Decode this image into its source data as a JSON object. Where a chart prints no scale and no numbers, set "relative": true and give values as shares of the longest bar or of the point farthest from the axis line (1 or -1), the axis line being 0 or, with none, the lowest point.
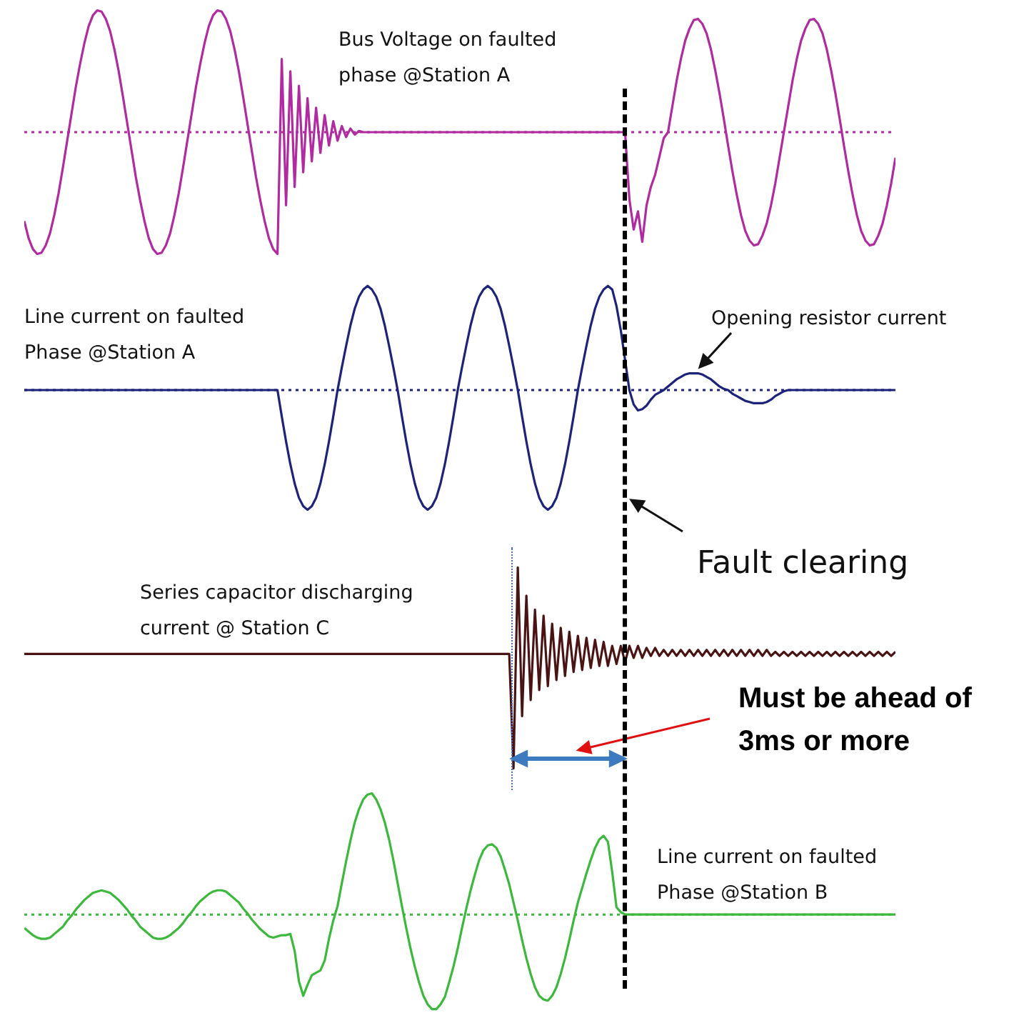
{
  "chart_data": [
    {
      "type": "line",
      "relative": true,
      "tick_labels": false,
      "marker": "none",
      "line_style": "solid",
      "categories": [
        null,
        null,
        null,
        null,
        null,
        null,
        null,
        null,
        null,
        null,
        null,
        null,
        null,
        null,
        null,
        null,
        null,
        null,
        null,
        null,
        null,
        null,
        null,
        null,
        null,
        null,
        null,
        null,
        null,
        null,
        null,
        null,
        null,
        null,
        null,
        null,
        null,
        null,
        null,
        null,
        null,
        null,
        null,
        null,
        null,
        null,
        null,
        null,
        null,
        null,
        null,
        null,
        null,
        null,
        null,
        null,
        null,
        null,
        null,
        null,
        null,
        null,
        null,
        null,
        null,
        null,
        null,
        null,
        null,
        null,
        null,
        null,
        null,
        null,
        null,
        null,
        null,
        null,
        null,
        null,
        null,
        null,
        null,
        null,
        null,
        null,
        null,
        null,
        null,
        null,
        null,
        null,
        null,
        null,
        null,
        null,
        null,
        null,
        null,
        null,
        null,
        null,
        null,
        null,
        null,
        null,
        null,
        null,
        null,
        null,
        null,
        null,
        null,
        null,
        null,
        null,
        null,
        null,
        null,
        null,
        null,
        null,
        null,
        null,
        null,
        null,
        null,
        null,
        null,
        null,
        null,
        null,
        null,
        null,
        null,
        null,
        null,
        null,
        null,
        null,
        null,
        null,
        null,
        null,
        null,
        null,
        null,
        null,
        null,
        null,
        null,
        null,
        null,
        null,
        null,
        null,
        null,
        null,
        null,
        null,
        null,
        null,
        null,
        null,
        null,
        null,
        null,
        null,
        null,
        null,
        null,
        null,
        null,
        null,
        null,
        null,
        null,
        null,
        null,
        null,
        null,
        null,
        null,
        null,
        null,
        null,
        null,
        null,
        null,
        null,
        null,
        null,
        null,
        null,
        null,
        null,
        null,
        null,
        null,
        null,
        null,
        null,
        null,
        null
      ],
      "series": [
        {
          "name": "Bus Voltage on faulted phase @Station A",
          "color": "#b02aa0",
          "values": [
            -0.73,
            -0.87,
            -0.96,
            -1,
            -0.99,
            -0.93,
            -0.83,
            -0.68,
            -0.5,
            -0.29,
            -0.07,
            0.15,
            0.37,
            0.56,
            0.73,
            0.87,
            0.96,
            1,
            0.99,
            0.93,
            0.83,
            0.68,
            0.5,
            0.29,
            0.07,
            -0.15,
            -0.37,
            -0.56,
            -0.73,
            -0.87,
            -0.96,
            -1,
            -0.99,
            -0.93,
            -0.83,
            -0.68,
            -0.5,
            -0.29,
            -0.07,
            0.15,
            0.37,
            0.56,
            0.73,
            0.87,
            0.96,
            1,
            0.99,
            0.93,
            0.83,
            0.68,
            0.5,
            0.29,
            0.07,
            -0.15,
            -0.37,
            -0.56,
            -0.73,
            -0.87,
            -0.96,
            -1,
            0.6,
            -0.6,
            0.5,
            -0.45,
            0.38,
            -0.33,
            0.28,
            -0.24,
            0.2,
            -0.17,
            0.14,
            -0.11,
            0.09,
            -0.07,
            0.05,
            -0.04,
            0.03,
            -0.02,
            0.01,
            0,
            0,
            0,
            0,
            0,
            0,
            0,
            0,
            0,
            0,
            0,
            0,
            0,
            0,
            0,
            0,
            0,
            0,
            0,
            0,
            0,
            0,
            0,
            0,
            0,
            0,
            0,
            0,
            0,
            0,
            0,
            0,
            0,
            0,
            0,
            0,
            0,
            0,
            0,
            0,
            0,
            0,
            0,
            0,
            0,
            0,
            0,
            0,
            0,
            0,
            0,
            0,
            0,
            0,
            0,
            0,
            0,
            0,
            0,
            0,
            0,
            0,
            -0.55,
            -0.8,
            -0.65,
            -0.9,
            -0.6,
            -0.45,
            -0.35,
            -0.2,
            -0.05,
            0,
            0.21,
            0.42,
            0.6,
            0.75,
            0.85,
            0.92,
            0.93,
            0.89,
            0.81,
            0.68,
            0.51,
            0.32,
            0.11,
            -0.11,
            -0.32,
            -0.51,
            -0.68,
            -0.81,
            -0.89,
            -0.93,
            -0.92,
            -0.85,
            -0.75,
            -0.6,
            -0.42,
            -0.21,
            0,
            0.21,
            0.42,
            0.6,
            0.75,
            0.85,
            0.92,
            0.93,
            0.89,
            0.81,
            0.68,
            0.51,
            0.32,
            0.11,
            -0.11,
            -0.32,
            -0.51,
            -0.68,
            -0.81,
            -0.89,
            -0.93,
            -0.92,
            -0.85,
            -0.75,
            -0.6,
            -0.42,
            -0.21
          ]
        }
      ],
      "ref_lines": [
        {
          "axis": "y",
          "value": 0,
          "color": "#b02aa0",
          "line_style": "dotted"
        }
      ]
    },
    {
      "type": "line",
      "relative": true,
      "tick_labels": false,
      "marker": "none",
      "line_style": "solid",
      "categories": [
        null,
        null,
        null,
        null,
        null,
        null,
        null,
        null,
        null,
        null,
        null,
        null,
        null,
        null,
        null,
        null,
        null,
        null,
        null,
        null,
        null,
        null,
        null,
        null,
        null,
        null,
        null,
        null,
        null,
        null,
        null,
        null,
        null,
        null,
        null,
        null,
        null,
        null,
        null,
        null,
        null,
        null,
        null,
        null,
        null,
        null,
        null,
        null,
        null,
        null,
        null,
        null,
        null,
        null,
        null,
        null,
        null,
        null,
        null,
        null,
        null,
        null,
        null,
        null,
        null,
        null,
        null,
        null,
        null,
        null,
        null,
        null,
        null,
        null,
        null,
        null,
        null,
        null,
        null,
        null,
        null,
        null,
        null,
        null,
        null,
        null,
        null,
        null,
        null,
        null,
        null,
        null,
        null,
        null,
        null,
        null,
        null,
        null,
        null,
        null,
        null,
        null,
        null,
        null,
        null,
        null,
        null,
        null,
        null,
        null,
        null,
        null,
        null,
        null,
        null,
        null,
        null,
        null,
        null,
        null,
        null,
        null,
        null,
        null,
        null,
        null,
        null,
        null,
        null,
        null,
        null,
        null,
        null,
        null,
        null,
        null,
        null,
        null,
        null,
        null,
        null,
        null,
        null,
        null,
        null,
        null,
        null,
        null,
        null,
        null,
        null,
        null,
        null,
        null,
        null,
        null,
        null,
        null,
        null,
        null,
        null,
        null,
        null,
        null,
        null,
        null,
        null,
        null,
        null,
        null,
        null,
        null,
        null,
        null,
        null,
        null,
        null,
        null,
        null,
        null,
        null,
        null,
        null,
        null,
        null,
        null,
        null,
        null,
        null,
        null,
        null,
        null,
        null,
        null,
        null,
        null,
        null,
        null,
        null,
        null,
        null,
        null,
        null,
        null
      ],
      "series": [
        {
          "name": "Line current on faulted Phase @Station A",
          "color": "#1c2378",
          "values": [
            0,
            0,
            0,
            0,
            0,
            0,
            0,
            0,
            0,
            0,
            0,
            0,
            0,
            0,
            0,
            0,
            0,
            0,
            0,
            0,
            0,
            0,
            0,
            0,
            0,
            0,
            0,
            0,
            0,
            0,
            0,
            0,
            0,
            0,
            0,
            0,
            0,
            0,
            0,
            0,
            0,
            0,
            0,
            0,
            0,
            0,
            0,
            0,
            0,
            0,
            0,
            0,
            0,
            0,
            0,
            0,
            0,
            0,
            0,
            0,
            -0.22,
            -0.43,
            -0.62,
            -0.78,
            -0.9,
            -0.97,
            -1,
            -0.97,
            -0.9,
            -0.78,
            -0.62,
            -0.43,
            -0.22,
            0,
            0.19,
            0.37,
            0.54,
            0.68,
            0.78,
            0.84,
            0.87,
            0.84,
            0.78,
            0.68,
            0.54,
            0.37,
            0.19,
            0,
            -0.22,
            -0.43,
            -0.62,
            -0.78,
            -0.9,
            -0.97,
            -1,
            -0.97,
            -0.9,
            -0.78,
            -0.62,
            -0.43,
            -0.22,
            0,
            0.19,
            0.37,
            0.54,
            0.68,
            0.78,
            0.84,
            0.87,
            0.84,
            0.78,
            0.68,
            0.54,
            0.37,
            0.19,
            0,
            -0.22,
            -0.43,
            -0.62,
            -0.78,
            -0.9,
            -0.97,
            -1,
            -0.97,
            -0.9,
            -0.78,
            -0.62,
            -0.43,
            -0.22,
            0,
            0.19,
            0.37,
            0.54,
            0.68,
            0.78,
            0.84,
            0.87,
            0.84,
            0.7,
            0.5,
            0.25,
            0,
            -0.12,
            -0.17,
            -0.16,
            -0.13,
            -0.08,
            -0.04,
            -0.02,
            0,
            0.03,
            0.06,
            0.09,
            0.11,
            0.13,
            0.14,
            0.14,
            0.14,
            0.13,
            0.11,
            0.09,
            0.06,
            0.03,
            0.01,
            0,
            -0.03,
            -0.05,
            -0.07,
            -0.09,
            -0.1,
            -0.11,
            -0.11,
            -0.11,
            -0.1,
            -0.08,
            -0.05,
            -0.03,
            -0.01,
            0,
            0,
            0,
            0,
            0,
            0,
            0,
            0,
            0,
            0,
            0,
            0,
            0,
            0,
            0,
            0,
            0,
            0,
            0,
            0,
            0,
            0,
            0,
            0,
            0,
            0
          ]
        }
      ],
      "ref_lines": [
        {
          "axis": "y",
          "value": 0,
          "color": "#1c2378",
          "line_style": "dotted"
        }
      ],
      "annotations": [
        "Opening resistor current"
      ]
    },
    {
      "type": "line",
      "relative": true,
      "tick_labels": false,
      "marker": "none",
      "line_style": "solid",
      "categories": [
        null,
        null,
        null,
        null,
        null,
        null,
        null,
        null,
        null,
        null,
        null,
        null,
        null,
        null,
        null,
        null,
        null,
        null,
        null,
        null,
        null,
        null,
        null,
        null,
        null,
        null,
        null,
        null,
        null,
        null,
        null,
        null,
        null,
        null,
        null,
        null,
        null,
        null,
        null,
        null,
        null,
        null,
        null,
        null,
        null,
        null,
        null,
        null,
        null,
        null,
        null,
        null,
        null,
        null,
        null,
        null,
        null,
        null,
        null,
        null,
        null,
        null,
        null,
        null,
        null,
        null,
        null,
        null,
        null,
        null,
        null,
        null,
        null,
        null,
        null,
        null,
        null,
        null,
        null,
        null,
        null,
        null,
        null,
        null,
        null,
        null,
        null,
        null,
        null,
        null,
        null,
        null,
        null,
        null,
        null,
        null,
        null,
        null,
        null,
        null,
        null,
        null,
        null,
        null,
        null,
        null,
        null,
        null,
        null,
        null,
        null,
        null,
        null,
        null,
        null,
        null,
        null,
        null,
        null,
        null,
        null,
        null,
        null,
        null,
        null,
        null,
        null,
        null,
        null,
        null,
        null,
        null,
        null,
        null,
        null,
        null,
        null,
        null,
        null,
        null,
        null,
        null,
        null,
        null,
        null,
        null,
        null,
        null,
        null,
        null,
        null,
        null,
        null,
        null,
        null,
        null,
        null,
        null,
        null,
        null,
        null,
        null,
        null,
        null,
        null,
        null,
        null,
        null,
        null,
        null,
        null,
        null,
        null,
        null,
        null,
        null,
        null,
        null,
        null,
        null,
        null,
        null,
        null,
        null,
        null,
        null,
        null,
        null,
        null,
        null,
        null,
        null,
        null,
        null,
        null,
        null,
        null,
        null,
        null,
        null,
        null,
        null,
        null,
        null
      ],
      "series": [
        {
          "name": "Series capacitor discharging current @ Station C",
          "color": "#4a1414",
          "values": [
            0.57,
            0.57,
            0.57,
            0.57,
            0.57,
            0.57,
            0.57,
            0.57,
            0.57,
            0.57,
            0.57,
            0.57,
            0.57,
            0.57,
            0.57,
            0.57,
            0.57,
            0.57,
            0.57,
            0.57,
            0.57,
            0.57,
            0.57,
            0.57,
            0.57,
            0.57,
            0.57,
            0.57,
            0.57,
            0.57,
            0.57,
            0.57,
            0.57,
            0.57,
            0.57,
            0.57,
            0.57,
            0.57,
            0.57,
            0.57,
            0.57,
            0.57,
            0.57,
            0.57,
            0.57,
            0.57,
            0.57,
            0.57,
            0.57,
            0.57,
            0.57,
            0.57,
            0.57,
            0.57,
            0.57,
            0.57,
            0.57,
            0.57,
            0.57,
            0.57,
            0.57,
            0.57,
            0.57,
            0.57,
            0.57,
            0.57,
            0.57,
            0.57,
            0.57,
            0.57,
            0.57,
            0.57,
            0.57,
            0.57,
            0.57,
            0.57,
            0.57,
            0.57,
            0.57,
            0.57,
            0.57,
            0.57,
            0.57,
            0.57,
            0.57,
            0.57,
            0.57,
            0.57,
            0.57,
            0.57,
            0.57,
            0.57,
            0.57,
            0.57,
            0.57,
            0.57,
            0.57,
            0.57,
            0.57,
            0.57,
            0.57,
            0.57,
            0.57,
            0.57,
            0.57,
            0.57,
            0.57,
            0.57,
            0.57,
            0.57,
            0.57,
            0.57,
            0.57,
            0.57,
            0,
            1,
            0.26,
            0.86,
            0.34,
            0.79,
            0.39,
            0.76,
            0.41,
            0.72,
            0.44,
            0.7,
            0.46,
            0.68,
            0.48,
            0.66,
            0.49,
            0.65,
            0.5,
            0.64,
            0.51,
            0.63,
            0.51,
            0.61,
            0.52,
            0.61,
            0.53,
            0.61,
            0.55,
            0.61,
            0.55,
            0.6,
            0.56,
            0.6,
            0.56,
            0.59,
            0.56,
            0.59,
            0.56,
            0.59,
            0.56,
            0.59,
            0.56,
            0.59,
            0.56,
            0.59,
            0.56,
            0.59,
            0.56,
            0.59,
            0.56,
            0.59,
            0.56,
            0.59,
            0.56,
            0.59,
            0.56,
            0.59,
            0.56,
            0.59,
            0.56,
            0.58,
            0.56,
            0.58,
            0.56,
            0.58,
            0.56,
            0.58,
            0.56,
            0.58,
            0.56,
            0.58,
            0.56,
            0.58,
            0.56,
            0.58,
            0.56,
            0.58,
            0.56,
            0.58,
            0.56,
            0.58,
            0.56,
            0.58,
            0.56,
            0.58,
            0.56,
            0.58,
            0.56,
            0.58
          ]
        }
      ],
      "annotations": [
        "Fault clearing",
        "Must be ahead of 3ms or more"
      ]
    },
    {
      "type": "line",
      "relative": true,
      "tick_labels": false,
      "marker": "none",
      "line_style": "solid",
      "categories": [
        null,
        null,
        null,
        null,
        null,
        null,
        null,
        null,
        null,
        null,
        null,
        null,
        null,
        null,
        null,
        null,
        null,
        null,
        null,
        null,
        null,
        null,
        null,
        null,
        null,
        null,
        null,
        null,
        null,
        null,
        null,
        null,
        null,
        null,
        null,
        null,
        null,
        null,
        null,
        null,
        null,
        null,
        null,
        null,
        null,
        null,
        null,
        null,
        null,
        null,
        null,
        null,
        null,
        null,
        null,
        null,
        null,
        null,
        null,
        null,
        null,
        null,
        null,
        null,
        null,
        null,
        null,
        null,
        null,
        null,
        null,
        null,
        null,
        null,
        null,
        null,
        null,
        null,
        null,
        null,
        null,
        null,
        null,
        null,
        null,
        null,
        null,
        null,
        null,
        null,
        null,
        null,
        null,
        null,
        null,
        null,
        null,
        null,
        null,
        null,
        null,
        null,
        null,
        null,
        null,
        null,
        null,
        null,
        null,
        null,
        null,
        null,
        null,
        null,
        null,
        null,
        null,
        null,
        null,
        null,
        null,
        null,
        null,
        null,
        null,
        null,
        null,
        null,
        null,
        null,
        null,
        null,
        null,
        null,
        null,
        null,
        null,
        null,
        null,
        null,
        null,
        null,
        null,
        null,
        null,
        null,
        null,
        null,
        null,
        null,
        null,
        null,
        null,
        null,
        null,
        null,
        null,
        null,
        null,
        null,
        null,
        null,
        null,
        null,
        null,
        null,
        null,
        null,
        null,
        null,
        null,
        null,
        null,
        null,
        null,
        null,
        null,
        null,
        null,
        null,
        null,
        null,
        null,
        null,
        null,
        null,
        null,
        null,
        null,
        null,
        null,
        null,
        null,
        null,
        null,
        null,
        null,
        null,
        null,
        null,
        null,
        null,
        null,
        null
      ],
      "series": [
        {
          "name": "Line current on faulted Phase @Station B",
          "color": "#3cb83c",
          "values": [
            -0.11,
            -0.14,
            -0.17,
            -0.19,
            -0.2,
            -0.2,
            -0.19,
            -0.16,
            -0.13,
            -0.1,
            -0.05,
            -0.01,
            0.04,
            0.08,
            0.12,
            0.15,
            0.18,
            0.19,
            0.2,
            0.19,
            0.18,
            0.15,
            0.12,
            0.08,
            0.04,
            -0.01,
            -0.05,
            -0.1,
            -0.13,
            -0.16,
            -0.19,
            -0.2,
            -0.2,
            -0.19,
            -0.17,
            -0.14,
            -0.11,
            -0.07,
            -0.02,
            0.02,
            0.07,
            0.11,
            0.14,
            0.17,
            0.19,
            0.2,
            0.2,
            0.19,
            0.16,
            0.13,
            0.1,
            0.05,
            0.01,
            -0.04,
            -0.08,
            -0.12,
            -0.15,
            -0.18,
            -0.19,
            -0.18,
            -0.17,
            -0.17,
            -0.16,
            -0.3,
            -0.55,
            -0.67,
            -0.58,
            -0.5,
            -0.48,
            -0.46,
            -0.38,
            -0.2,
            -0.05,
            0.07,
            0.26,
            0.44,
            0.61,
            0.76,
            0.87,
            0.95,
            0.99,
            1,
            0.95,
            0.87,
            0.76,
            0.62,
            0.45,
            0.26,
            0.07,
            -0.11,
            -0.28,
            -0.43,
            -0.56,
            -0.67,
            -0.74,
            -0.78,
            -0.78,
            -0.74,
            -0.68,
            -0.56,
            -0.43,
            -0.28,
            -0.11,
            0.05,
            0.2,
            0.33,
            0.45,
            0.53,
            0.57,
            0.58,
            0.55,
            0.48,
            0.37,
            0.25,
            0.1,
            -0.05,
            -0.21,
            -0.36,
            -0.49,
            -0.6,
            -0.67,
            -0.7,
            -0.71,
            -0.67,
            -0.6,
            -0.49,
            -0.36,
            -0.21,
            -0.05,
            0.1,
            0.22,
            0.34,
            0.45,
            0.55,
            0.62,
            0.65,
            0.6,
            0.35,
            0.06,
            0.02,
            0,
            0,
            0,
            0,
            0,
            0,
            0,
            0,
            0,
            0,
            0,
            0,
            0,
            0,
            0,
            0,
            0,
            0,
            0,
            0,
            0,
            0,
            0,
            0,
            0,
            0,
            0,
            0,
            0,
            0,
            0,
            0,
            0,
            0,
            0,
            0,
            0,
            0,
            0,
            0,
            0,
            0,
            0,
            0,
            0,
            0,
            0,
            0,
            0,
            0,
            0,
            0,
            0,
            0,
            0,
            0,
            0,
            0,
            0,
            0,
            0,
            0,
            0,
            0
          ]
        }
      ],
      "ref_lines": [
        {
          "axis": "y",
          "value": 0,
          "color": "#3cb83c",
          "line_style": "dotted"
        }
      ]
    }
  ]
}
